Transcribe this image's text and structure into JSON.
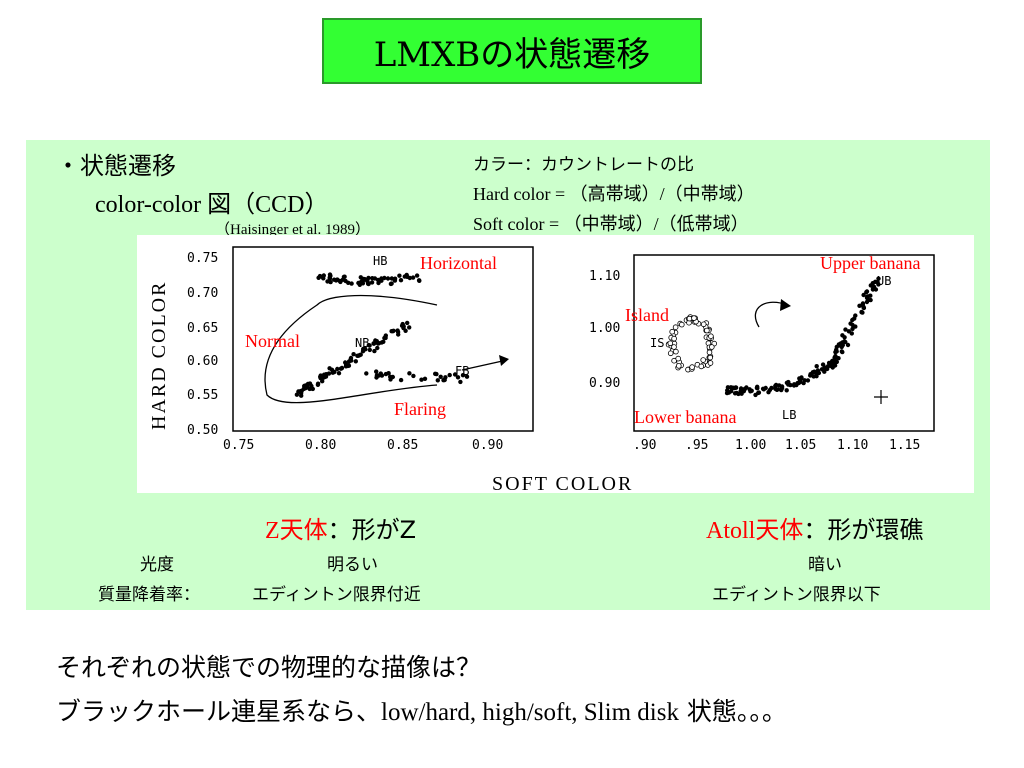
{
  "slide": {
    "title": "LMXBの状態遷移",
    "bullet": "・状態遷移",
    "ccd_label": "color-color 図（CCD）",
    "citation": "（Haisinger et al. 1989）",
    "color_def_1": "カラー：カウントレートの比",
    "color_def_2": "Hard color = （高帯域）/（中帯域）",
    "color_def_3": "Soft color  = （中帯域）/（低帯域）"
  },
  "figure": {
    "y_axis_label": "HARD COLOR",
    "x_axis_label": "SOFT COLOR",
    "left": {
      "y_ticks": [
        "0.75",
        "0.70",
        "0.65",
        "0.60",
        "0.55",
        "0.50"
      ],
      "x_ticks": [
        "0.75",
        "0.80",
        "0.85",
        "0.90"
      ],
      "branch_labels": [
        "HB",
        "NB",
        "FB"
      ],
      "annotations": [
        "Horizontal",
        "Normal",
        "Flaring"
      ]
    },
    "right": {
      "y_ticks": [
        "1.10",
        "1.00",
        "0.90"
      ],
      "x_ticks": [
        ".90",
        ".95",
        "1.00",
        "1.05",
        "1.10",
        "1.15"
      ],
      "branch_labels": [
        "UB",
        "IS",
        "LB"
      ],
      "annotations": [
        "Upper banana",
        "Island",
        "Lower banana"
      ]
    }
  },
  "classes": {
    "z_prefix": "Z",
    "z_red": "天体",
    "z_rest": "：形がZ",
    "atoll_prefix": "Atoll",
    "atoll_red": "天体",
    "atoll_rest": "：形が環礁",
    "row1_label": "光度",
    "row1_z": "明るい",
    "row1_atoll": "暗い",
    "row2_label": "質量降着率：",
    "row2_z": "エディントン限界付近",
    "row2_atoll": "エディントン限界以下"
  },
  "footer": {
    "line1": "それぞれの状態での物理的な描像は？",
    "line2_prefix": "ブラックホール連星系なら、",
    "line2_mid": "low/hard, high/soft, Slim disk",
    "line2_suffix": " 状態。。。"
  },
  "colors": {
    "title_bg": "#33ff33",
    "panel_bg": "#ccffcc",
    "accent_red": "#ff0000"
  }
}
